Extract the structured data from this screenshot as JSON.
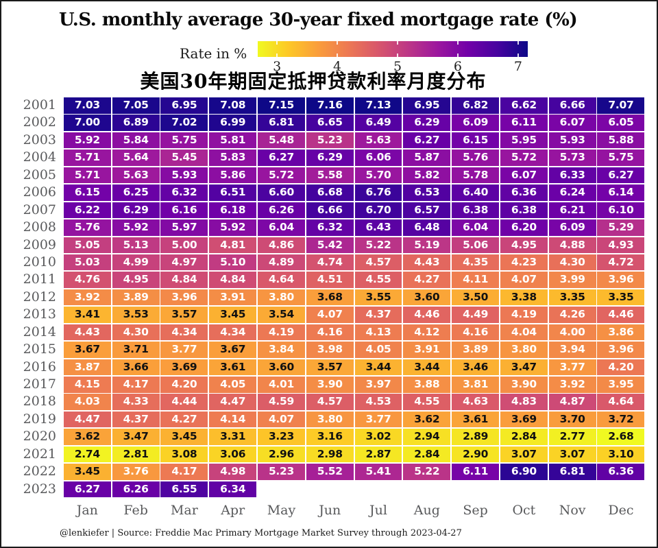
{
  "title": "U.S. monthly average 30-year fixed mortgage rate (%)",
  "subtitle_zh": "美国30年期固定抵押贷款利率月度分布",
  "legend": {
    "label": "Rate in %",
    "ticks": [
      3,
      4,
      5,
      6,
      7
    ]
  },
  "caption": "@lenkiefer | Source: Freddie Mac Primary Mortgage Market Survey through 2023-04-27",
  "colors": {
    "plasma_stops": [
      "#0d0887",
      "#46039f",
      "#7201a8",
      "#9c179e",
      "#bd3786",
      "#d8576b",
      "#ed7953",
      "#fa9e3b",
      "#fdc926",
      "#f0f921"
    ],
    "cell_text_dark": "#111111",
    "cell_text_light": "#ffffff",
    "axis_label_gray": "#58595b"
  },
  "chart_data": {
    "type": "heatmap",
    "colormap": "plasma-reversed",
    "domain": [
      2.68,
      7.16
    ],
    "value_format_decimals": 2,
    "x_categories": [
      "Jan",
      "Feb",
      "Mar",
      "Apr",
      "May",
      "Jun",
      "Jul",
      "Aug",
      "Sep",
      "Oct",
      "Nov",
      "Dec"
    ],
    "y_categories": [
      "2001",
      "2002",
      "2003",
      "2004",
      "2005",
      "2006",
      "2007",
      "2008",
      "2009",
      "2010",
      "2011",
      "2012",
      "2013",
      "2014",
      "2015",
      "2016",
      "2017",
      "2018",
      "2019",
      "2020",
      "2021",
      "2022",
      "2023"
    ],
    "values": [
      [
        7.03,
        7.05,
        6.95,
        7.08,
        7.15,
        7.16,
        7.13,
        6.95,
        6.82,
        6.62,
        6.66,
        7.07
      ],
      [
        7.0,
        6.89,
        7.02,
        6.99,
        6.81,
        6.65,
        6.49,
        6.29,
        6.09,
        6.11,
        6.07,
        6.05
      ],
      [
        5.92,
        5.84,
        5.75,
        5.81,
        5.48,
        5.23,
        5.63,
        6.27,
        6.15,
        5.95,
        5.93,
        5.88
      ],
      [
        5.71,
        5.64,
        5.45,
        5.83,
        6.27,
        6.29,
        6.06,
        5.87,
        5.76,
        5.72,
        5.73,
        5.75
      ],
      [
        5.71,
        5.63,
        5.93,
        5.86,
        5.72,
        5.58,
        5.7,
        5.82,
        5.78,
        6.07,
        6.33,
        6.27
      ],
      [
        6.15,
        6.25,
        6.32,
        6.51,
        6.6,
        6.68,
        6.76,
        6.53,
        6.4,
        6.36,
        6.24,
        6.14
      ],
      [
        6.22,
        6.29,
        6.16,
        6.18,
        6.26,
        6.66,
        6.7,
        6.57,
        6.38,
        6.38,
        6.21,
        6.1
      ],
      [
        5.76,
        5.92,
        5.97,
        5.92,
        6.04,
        6.32,
        6.43,
        6.48,
        6.04,
        6.2,
        6.09,
        5.29
      ],
      [
        5.05,
        5.13,
        5.0,
        4.81,
        4.86,
        5.42,
        5.22,
        5.19,
        5.06,
        4.95,
        4.88,
        4.93
      ],
      [
        5.03,
        4.99,
        4.97,
        5.1,
        4.89,
        4.74,
        4.57,
        4.43,
        4.35,
        4.23,
        4.3,
        4.72
      ],
      [
        4.76,
        4.95,
        4.84,
        4.84,
        4.64,
        4.51,
        4.55,
        4.27,
        4.11,
        4.07,
        3.99,
        3.96
      ],
      [
        3.92,
        3.89,
        3.96,
        3.91,
        3.8,
        3.68,
        3.55,
        3.6,
        3.5,
        3.38,
        3.35,
        3.35
      ],
      [
        3.41,
        3.53,
        3.57,
        3.45,
        3.54,
        4.07,
        4.37,
        4.46,
        4.49,
        4.19,
        4.26,
        4.46
      ],
      [
        4.43,
        4.3,
        4.34,
        4.34,
        4.19,
        4.16,
        4.13,
        4.12,
        4.16,
        4.04,
        4.0,
        3.86
      ],
      [
        3.67,
        3.71,
        3.77,
        3.67,
        3.84,
        3.98,
        4.05,
        3.91,
        3.89,
        3.8,
        3.94,
        3.96
      ],
      [
        3.87,
        3.66,
        3.69,
        3.61,
        3.6,
        3.57,
        3.44,
        3.44,
        3.46,
        3.47,
        3.77,
        4.2
      ],
      [
        4.15,
        4.17,
        4.2,
        4.05,
        4.01,
        3.9,
        3.97,
        3.88,
        3.81,
        3.9,
        3.92,
        3.95
      ],
      [
        4.03,
        4.33,
        4.44,
        4.47,
        4.59,
        4.57,
        4.53,
        4.55,
        4.63,
        4.83,
        4.87,
        4.64
      ],
      [
        4.47,
        4.37,
        4.27,
        4.14,
        4.07,
        3.8,
        3.77,
        3.62,
        3.61,
        3.69,
        3.7,
        3.72
      ],
      [
        3.62,
        3.47,
        3.45,
        3.31,
        3.23,
        3.16,
        3.02,
        2.94,
        2.89,
        2.84,
        2.77,
        2.68
      ],
      [
        2.74,
        2.81,
        3.08,
        3.06,
        2.96,
        2.98,
        2.87,
        2.84,
        2.9,
        3.07,
        3.07,
        3.1
      ],
      [
        3.45,
        3.76,
        4.17,
        4.98,
        5.23,
        5.52,
        5.41,
        5.22,
        6.11,
        6.9,
        6.81,
        6.36
      ],
      [
        6.27,
        6.26,
        6.55,
        6.34
      ]
    ]
  }
}
